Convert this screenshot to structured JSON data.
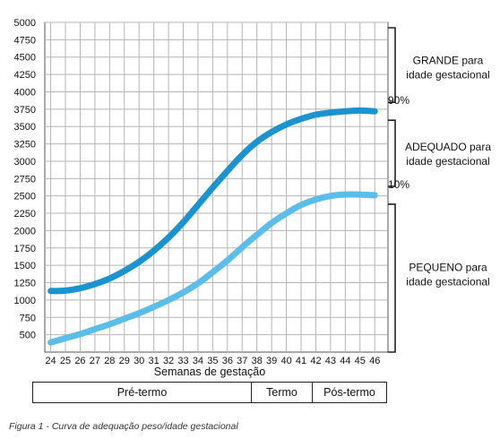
{
  "chart_data": {
    "type": "line",
    "xlabel": "Semanas de gestação",
    "ylabel": "",
    "x": [
      24,
      25,
      26,
      27,
      28,
      29,
      30,
      31,
      32,
      33,
      34,
      35,
      36,
      37,
      38,
      39,
      40,
      41,
      42,
      43,
      44,
      45,
      46
    ],
    "xlim": [
      23.6,
      46.9
    ],
    "ylim": [
      250,
      5000
    ],
    "yticks": [
      500,
      750,
      1000,
      1250,
      1500,
      1750,
      2000,
      2250,
      2500,
      2750,
      3000,
      3250,
      3500,
      3750,
      4000,
      4250,
      4500,
      4750,
      5000
    ],
    "grid": true,
    "series": [
      {
        "name": "90%",
        "color": "#1a93cf",
        "values": [
          1130,
          1135,
          1170,
          1230,
          1310,
          1420,
          1550,
          1710,
          1900,
          2120,
          2370,
          2620,
          2860,
          3090,
          3280,
          3420,
          3530,
          3610,
          3670,
          3700,
          3720,
          3730,
          3720
        ]
      },
      {
        "name": "10%",
        "color": "#5bbde9",
        "values": [
          390,
          450,
          510,
          580,
          650,
          730,
          810,
          900,
          1000,
          1110,
          1240,
          1400,
          1570,
          1760,
          1940,
          2110,
          2250,
          2370,
          2450,
          2500,
          2520,
          2520,
          2510
        ]
      }
    ],
    "bands": [
      {
        "name": "GRANDE para",
        "name2": "idade gestacional"
      },
      {
        "name": "ADEQUADO para",
        "name2": "idade gestacional"
      },
      {
        "name": "PEQUENO para",
        "name2": "idade gestacional"
      }
    ]
  },
  "periods": [
    {
      "label": "Pré-termo"
    },
    {
      "label": "Termo"
    },
    {
      "label": "Pós-termo"
    }
  ],
  "caption": "Figura 1 - Curva de adequação peso/idade gestacional"
}
